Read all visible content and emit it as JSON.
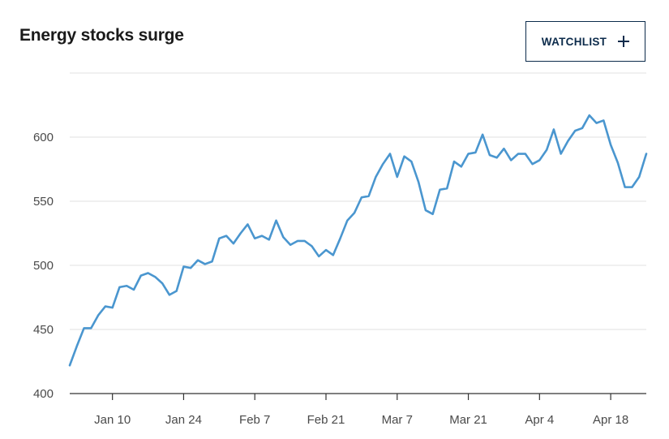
{
  "header": {
    "title": "Energy stocks surge",
    "watchlist_label": "WATCHLIST"
  },
  "chart_data": {
    "type": "line",
    "title": "Energy stocks surge",
    "xlabel": "",
    "ylabel": "",
    "ylim": [
      400,
      640
    ],
    "y_ticks": [
      400,
      450,
      500,
      550,
      600
    ],
    "x_ticks": [
      "Jan 10",
      "Jan 24",
      "Feb 7",
      "Feb 21",
      "Mar 7",
      "Mar 21",
      "Apr 4",
      "Apr 18"
    ],
    "x_tick_index": [
      6,
      16,
      26,
      36,
      46,
      56,
      66,
      76
    ],
    "grid": true,
    "line_color": "#4a96cf",
    "series": [
      {
        "values": [
          422,
          437,
          451,
          451,
          461,
          468,
          467,
          483,
          484,
          481,
          492,
          494,
          491,
          486,
          477,
          480,
          499,
          498,
          504,
          501,
          503,
          521,
          523,
          517,
          525,
          532,
          521,
          523,
          520,
          535,
          522,
          516,
          519,
          519,
          515,
          507,
          512,
          508,
          521,
          535,
          541,
          553,
          554,
          569,
          579,
          587,
          569,
          585,
          581,
          565,
          543,
          540,
          559,
          560,
          581,
          577,
          587,
          588,
          602,
          586,
          584,
          591,
          582,
          587,
          587,
          579,
          582,
          590,
          606,
          587,
          597,
          605,
          607,
          617,
          611,
          613,
          594,
          580,
          561,
          561,
          569,
          587
        ]
      }
    ]
  }
}
